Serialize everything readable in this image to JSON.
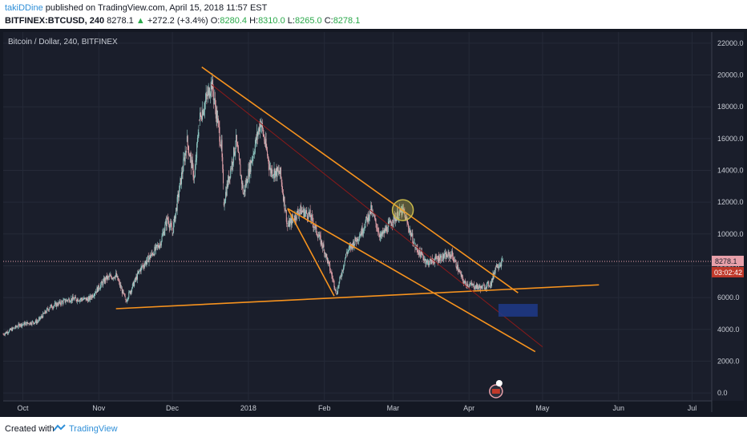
{
  "header": {
    "author": "takiDDine",
    "published": "published on TradingView.com, April 15, 2018 11:57 EST",
    "symbol": "BITFINEX:BTCUSD, 240",
    "last": "8278.1",
    "change": "+272.2 (+3.4%)",
    "open_label": "O:",
    "open": "8280.4",
    "high_label": "H:",
    "high": "8310.0",
    "low_label": "L:",
    "low": "8265.0",
    "close_label": "C:",
    "close": "8278.1"
  },
  "footer": {
    "created_with": "Created with",
    "brand": "TradingView"
  },
  "colors": {
    "background": "#1a1e2b",
    "grid": "#252a38",
    "up": "#8fc9c4",
    "down": "#e0a0a8",
    "trendline": "#f7931e",
    "redline": "#8b1a1a",
    "box": "#1f3a8a",
    "price_label": "#e8a0aa",
    "timer_label": "#c0392b"
  },
  "chart_data": {
    "type": "candlestick",
    "title": "Bitcoin / Dollar, 240, BITFINEX",
    "y_ticks": [
      0,
      2000,
      4000,
      6000,
      8000,
      10000,
      12000,
      14000,
      16000,
      18000,
      20000,
      22000
    ],
    "x_ticks": [
      "Oct",
      "Nov",
      "Dec",
      "2018",
      "Feb",
      "Mar",
      "Apr",
      "May",
      "Jun",
      "Jul"
    ],
    "ylim": [
      -500,
      22700
    ],
    "x_range": [
      "2017-09-23",
      "2018-07-09"
    ],
    "current_price": "8278.1",
    "countdown": "03:02:42",
    "price_path": [
      [
        "2017-09-23",
        3700
      ],
      [
        "2017-09-30",
        4300
      ],
      [
        "2017-10-07",
        4500
      ],
      [
        "2017-10-12",
        5400
      ],
      [
        "2017-10-20",
        5900
      ],
      [
        "2017-10-28",
        5900
      ],
      [
        "2017-11-04",
        7200
      ],
      [
        "2017-11-08",
        7400
      ],
      [
        "2017-11-12",
        5800
      ],
      [
        "2017-11-18",
        7800
      ],
      [
        "2017-11-26",
        9400
      ],
      [
        "2017-11-29",
        11000
      ],
      [
        "2017-12-01",
        10100
      ],
      [
        "2017-12-07",
        15800
      ],
      [
        "2017-12-10",
        13500
      ],
      [
        "2017-12-12",
        17200
      ],
      [
        "2017-12-17",
        19500
      ],
      [
        "2017-12-21",
        15500
      ],
      [
        "2017-12-22",
        12000
      ],
      [
        "2017-12-27",
        15800
      ],
      [
        "2017-12-30",
        12500
      ],
      [
        "2018-01-06",
        17100
      ],
      [
        "2018-01-10",
        14000
      ],
      [
        "2018-01-14",
        13800
      ],
      [
        "2018-01-17",
        10500
      ],
      [
        "2018-01-22",
        11500
      ],
      [
        "2018-01-26",
        11200
      ],
      [
        "2018-02-01",
        9000
      ],
      [
        "2018-02-06",
        6300
      ],
      [
        "2018-02-10",
        8800
      ],
      [
        "2018-02-16",
        10100
      ],
      [
        "2018-02-20",
        11500
      ],
      [
        "2018-02-24",
        9800
      ],
      [
        "2018-03-01",
        10900
      ],
      [
        "2018-03-05",
        11500
      ],
      [
        "2018-03-10",
        9200
      ],
      [
        "2018-03-15",
        8200
      ],
      [
        "2018-03-20",
        8500
      ],
      [
        "2018-03-25",
        8700
      ],
      [
        "2018-03-30",
        6900
      ],
      [
        "2018-04-06",
        6600
      ],
      [
        "2018-04-10",
        6900
      ],
      [
        "2018-04-12",
        8000
      ],
      [
        "2018-04-15",
        8278
      ]
    ],
    "trendlines": [
      {
        "name": "upper-channel",
        "from": [
          "2017-12-13",
          20500
        ],
        "to": [
          "2018-04-21",
          6300
        ]
      },
      {
        "name": "lower-wedge",
        "from": [
          "2018-01-17",
          11600
        ],
        "to": [
          "2018-04-28",
          2600
        ]
      },
      {
        "name": "falling-leg",
        "from": [
          "2018-01-17",
          11600
        ],
        "to": [
          "2018-02-05",
          6100
        ]
      },
      {
        "name": "support",
        "from": [
          "2017-11-08",
          5300
        ],
        "to": [
          "2018-05-24",
          6800
        ]
      },
      {
        "name": "red-trend",
        "from": [
          "2017-12-17",
          19400
        ],
        "to": [
          "2018-05-01",
          2900
        ]
      }
    ],
    "highlight_circle": [
      "2018-03-05",
      11500
    ],
    "target_box": {
      "from": [
        "2018-04-13",
        5600
      ],
      "to": [
        "2018-04-29",
        4800
      ]
    }
  }
}
